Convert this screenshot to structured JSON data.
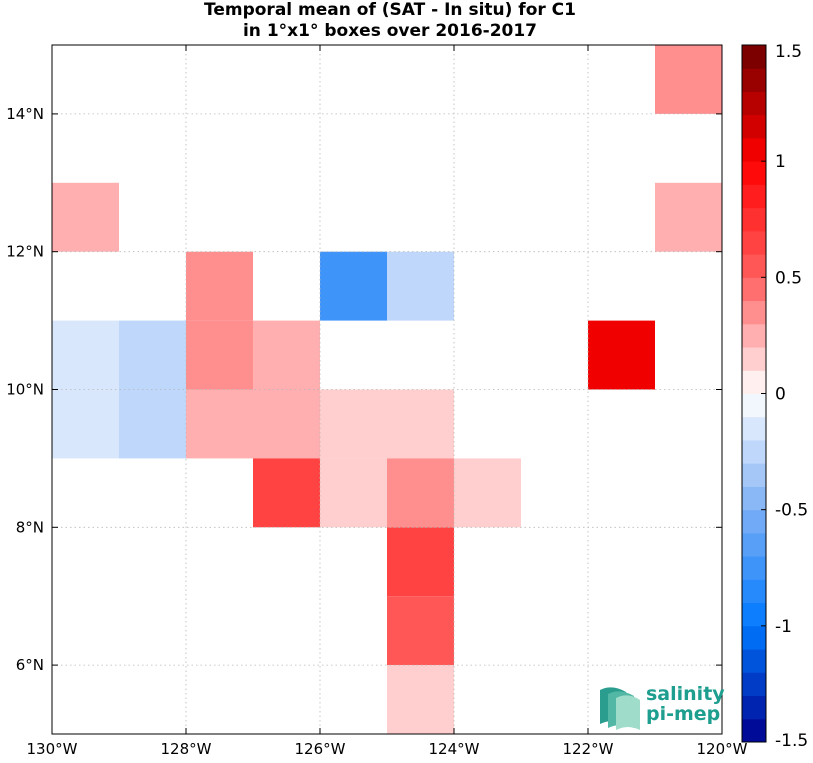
{
  "chart_data": {
    "type": "heatmap",
    "title": "Temporal mean of (SAT - In situ) for C1",
    "subtitle": "in 1°x1° boxes over 2016-2017",
    "xlim": [
      -130,
      -120
    ],
    "ylim": [
      5,
      15
    ],
    "xticks": [
      -130,
      -128,
      -126,
      -124,
      -122,
      -120
    ],
    "yticks": [
      6,
      8,
      10,
      12,
      14
    ],
    "xtick_labels": [
      "130°W",
      "128°W",
      "126°W",
      "124°W",
      "122°W",
      "120°W"
    ],
    "ytick_labels": [
      "6°N",
      "8°N",
      "10°N",
      "12°N",
      "14°N"
    ],
    "grid": true,
    "colorbar": {
      "min": -1.5,
      "max": 1.5,
      "steps": 30,
      "tick_values": [
        1.5,
        1,
        0.5,
        0,
        -0.5,
        -1,
        -1.5
      ],
      "tick_labels": [
        "1.5",
        "1",
        "0.5",
        "0",
        "-0.5",
        "-1",
        "-1.5"
      ]
    },
    "cells": [
      {
        "lon": -121,
        "lat": 14,
        "value": 0.35
      },
      {
        "lon": -130,
        "lat": 12,
        "value": 0.25
      },
      {
        "lon": -121,
        "lat": 12,
        "value": 0.25
      },
      {
        "lon": -128,
        "lat": 11,
        "value": 0.35
      },
      {
        "lon": -126,
        "lat": 11,
        "value": -0.75
      },
      {
        "lon": -125,
        "lat": 11,
        "value": -0.25
      },
      {
        "lon": -130,
        "lat": 10,
        "value": -0.15
      },
      {
        "lon": -129,
        "lat": 10,
        "value": -0.25
      },
      {
        "lon": -128,
        "lat": 10,
        "value": 0.35
      },
      {
        "lon": -127,
        "lat": 10,
        "value": 0.25
      },
      {
        "lon": -122,
        "lat": 10,
        "value": 1.05
      },
      {
        "lon": -130,
        "lat": 9,
        "value": -0.15
      },
      {
        "lon": -129,
        "lat": 9,
        "value": -0.25
      },
      {
        "lon": -128,
        "lat": 9,
        "value": 0.25
      },
      {
        "lon": -127,
        "lat": 9,
        "value": 0.25
      },
      {
        "lon": -126,
        "lat": 9,
        "value": 0.15
      },
      {
        "lon": -125,
        "lat": 9,
        "value": 0.15
      },
      {
        "lon": -127,
        "lat": 8,
        "value": 0.65
      },
      {
        "lon": -126,
        "lat": 8,
        "value": 0.15
      },
      {
        "lon": -125,
        "lat": 8,
        "value": 0.35
      },
      {
        "lon": -124,
        "lat": 8,
        "value": 0.15
      },
      {
        "lon": -125,
        "lat": 7,
        "value": 0.65
      },
      {
        "lon": -125,
        "lat": 6,
        "value": 0.55
      },
      {
        "lon": -125,
        "lat": 5,
        "value": 0.15
      }
    ]
  },
  "logo": {
    "line1": "salinity",
    "line2": "pi-mep"
  }
}
